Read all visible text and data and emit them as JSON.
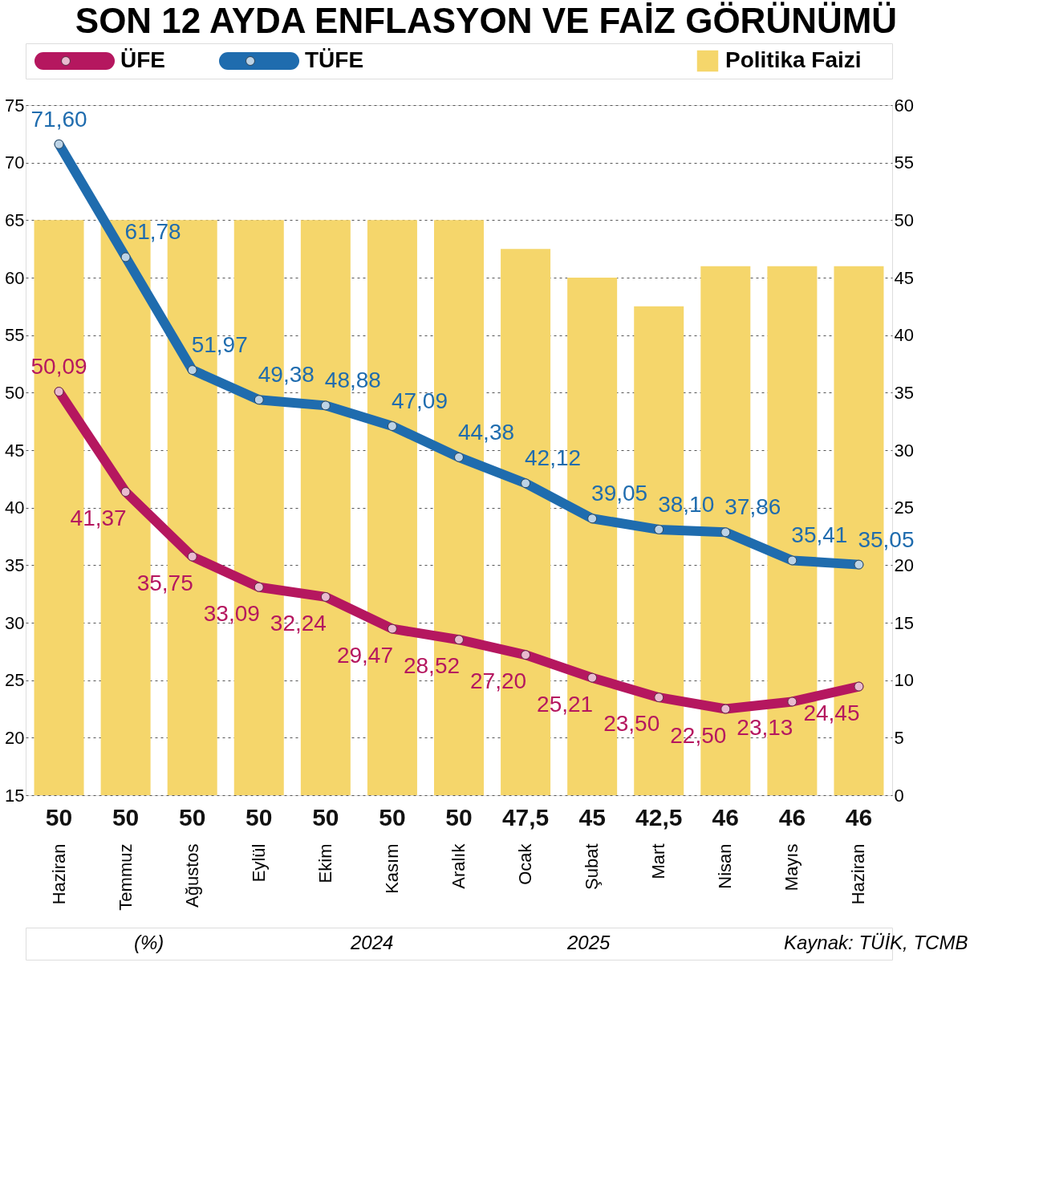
{
  "chart_data": {
    "type": "bar",
    "title": "SON 12 AYDA ENFLASYON VE FAİZ GÖRÜNÜMÜ",
    "categories": [
      "Haziran",
      "Temmuz",
      "Ağustos",
      "Eylül",
      "Ekim",
      "Kasım",
      "Aralık",
      "Ocak",
      "Şubat",
      "Mart",
      "Nisan",
      "Mayıs",
      "Haziran"
    ],
    "series": [
      {
        "name": "Politika Faizi",
        "axis": "y2",
        "color": "#f5d66b",
        "values": [
          50,
          50,
          50,
          50,
          50,
          50,
          50,
          47.5,
          45,
          42.5,
          46,
          46,
          46
        ],
        "value_labels": [
          "50",
          "50",
          "50",
          "50",
          "50",
          "50",
          "50",
          "47,5",
          "45",
          "42,5",
          "46",
          "46",
          "46"
        ]
      },
      {
        "name": "ÜFE",
        "type": "line",
        "color": "#b5175f",
        "values": [
          50.09,
          41.37,
          35.75,
          33.09,
          32.24,
          29.47,
          28.52,
          27.2,
          25.21,
          23.5,
          22.5,
          23.13,
          24.45
        ],
        "value_labels": [
          "50,09",
          "41,37",
          "35,75",
          "33,09",
          "32,24",
          "29,47",
          "28,52",
          "27,20",
          "25,21",
          "23,50",
          "22,50",
          "23,13",
          "24,45"
        ]
      },
      {
        "name": "TÜFE",
        "type": "line",
        "color": "#1f6cae",
        "values": [
          71.6,
          61.78,
          51.97,
          49.38,
          48.88,
          47.09,
          44.38,
          42.12,
          39.05,
          38.1,
          37.86,
          35.41,
          35.05
        ],
        "value_labels": [
          "71,60",
          "61,78",
          "51,97",
          "49,38",
          "48,88",
          "47,09",
          "44,38",
          "42,12",
          "39,05",
          "38,10",
          "37,86",
          "35,41",
          "35,05"
        ]
      }
    ],
    "ylim": [
      15,
      75
    ],
    "yticks": [
      15,
      20,
      25,
      30,
      35,
      40,
      45,
      50,
      55,
      60,
      65,
      70,
      75
    ],
    "y2lim": [
      0,
      60
    ],
    "y2ticks": [
      0,
      5,
      10,
      15,
      20,
      25,
      30,
      35,
      40,
      45,
      50,
      55,
      60
    ],
    "grid": "y",
    "legend": "top",
    "marker": "circle",
    "line_style": "solid",
    "annotations": [
      "(%)",
      "2024",
      "2025",
      "Kaynak: TÜİK, TCMB"
    ]
  }
}
